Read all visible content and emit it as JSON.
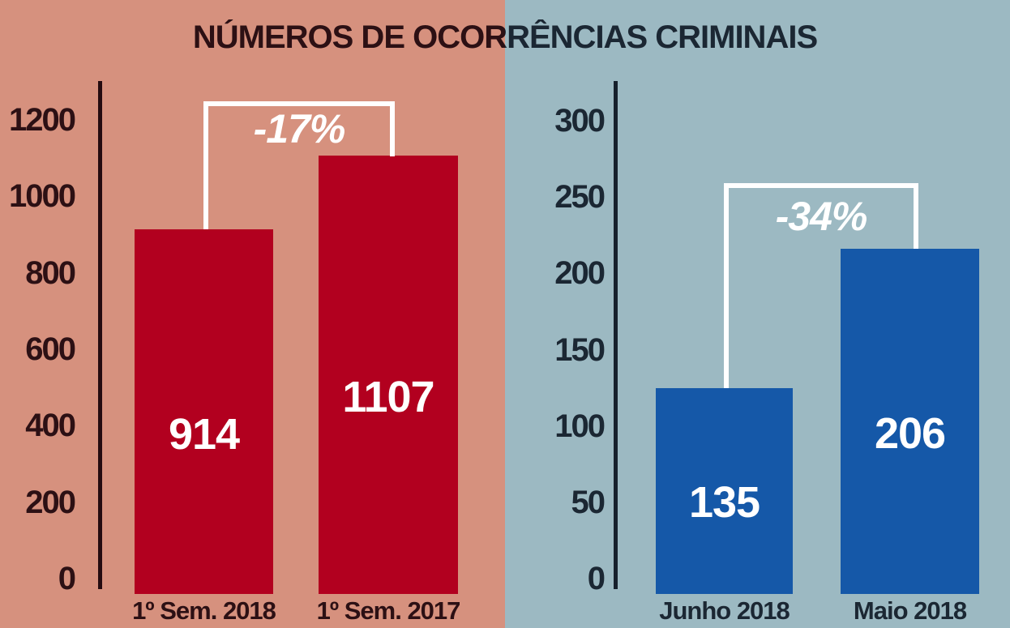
{
  "title": "NÚMEROS DE OCORRÊNCIAS CRIMINAIS",
  "colors": {
    "left_background": "#d6917e",
    "right_background": "#9cb9c2",
    "left_bar": "#b2001f",
    "right_bar": "#1558a8",
    "left_text": "#2c1014",
    "right_text": "#1b2733",
    "annotation_white": "#ffffff"
  },
  "chart_data": [
    {
      "type": "bar",
      "title": "NÚMEROS DE OCORRÊNCIAS CRIMINAIS",
      "categories": [
        "1º Sem. 2018",
        "1º Sem. 2017"
      ],
      "values": [
        914,
        1107
      ],
      "annotation": "-17%",
      "yticks": [
        0,
        200,
        400,
        600,
        800,
        1000,
        1200
      ],
      "ylim": [
        0,
        1300
      ],
      "xlabel": "",
      "ylabel": "",
      "grid": false,
      "legend": "none",
      "bar_color": "#b2001f",
      "background": "#d6917e"
    },
    {
      "type": "bar",
      "title": "NÚMEROS DE OCORRÊNCIAS CRIMINAIS",
      "categories": [
        "Junho 2018",
        "Maio 2018"
      ],
      "values": [
        135,
        206
      ],
      "annotation": "-34%",
      "yticks": [
        0,
        50,
        100,
        150,
        200,
        250,
        300
      ],
      "ylim": [
        0,
        320
      ],
      "xlabel": "",
      "ylabel": "",
      "grid": false,
      "legend": "none",
      "bar_color": "#1558a8",
      "background": "#9cb9c2"
    }
  ]
}
